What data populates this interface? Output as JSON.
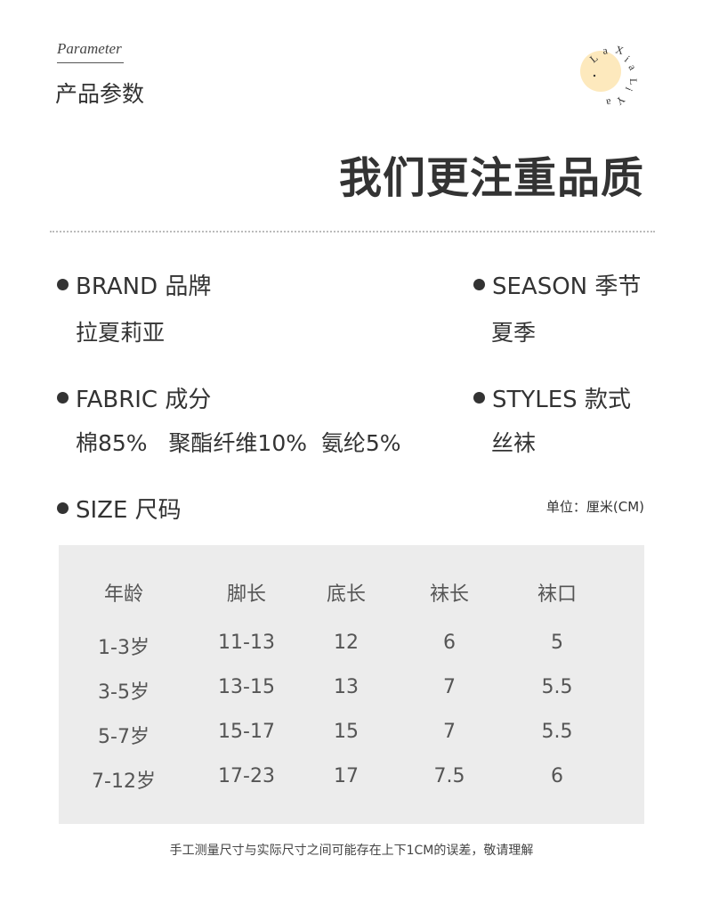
{
  "header": {
    "en_title": "Parameter",
    "cn_title": "产品参数",
    "logo_text": "LaXiaLiYa.",
    "logo_color": "#fde9bd"
  },
  "headline": "我们更注重品质",
  "fields": [
    {
      "label": "BRAND  品牌",
      "value": "拉夏莉亚"
    },
    {
      "label": "SEASON  季节",
      "value": "夏季"
    },
    {
      "label": "FABRIC  成分",
      "value": "棉85%   聚酯纤维10%  氨纶5%"
    },
    {
      "label": "STYLES  款式",
      "value": "丝袜"
    }
  ],
  "size": {
    "label": "SIZE  尺码",
    "unit": "单位：厘米(CM)"
  },
  "table": {
    "headers": [
      "年龄",
      "脚长",
      "底长",
      "袜长",
      "袜口"
    ],
    "rows": [
      [
        "1-3岁",
        "11-13",
        "12",
        "6",
        "5"
      ],
      [
        "3-5岁",
        "13-15",
        "13",
        "7",
        "5.5"
      ],
      [
        "5-7岁",
        "15-17",
        "15",
        "7",
        "5.5"
      ],
      [
        "7-12岁",
        "17-23",
        "17",
        "7.5",
        "6"
      ]
    ]
  },
  "note": "手工测量尺寸与实际尺寸之间可能存在上下1CM的误差，敬请理解"
}
